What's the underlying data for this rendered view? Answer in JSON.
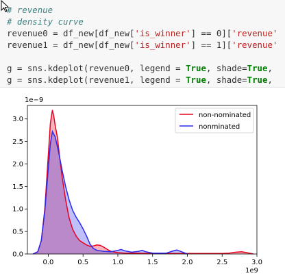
{
  "code": {
    "lines": [
      [
        {
          "t": "# revenue",
          "c": "cm"
        }
      ],
      [
        {
          "t": "# density curve",
          "c": "cm"
        }
      ],
      [
        {
          "t": "revenue0 = df_new[df_new[",
          "c": ""
        },
        {
          "t": "'is_winner'",
          "c": "st"
        },
        {
          "t": "] == 0][",
          "c": ""
        },
        {
          "t": "'revenue'",
          "c": "st"
        }
      ],
      [
        {
          "t": "revenue1 = df_new[df_new[",
          "c": ""
        },
        {
          "t": "'is_winner'",
          "c": "st"
        },
        {
          "t": "] == 1][",
          "c": ""
        },
        {
          "t": "'revenue'",
          "c": "st"
        }
      ],
      [],
      [
        {
          "t": "g = sns.kdeplot(revenue0, legend = ",
          "c": ""
        },
        {
          "t": "True",
          "c": "kw"
        },
        {
          "t": ", shade=",
          "c": ""
        },
        {
          "t": "True",
          "c": "kw"
        },
        {
          "t": ",",
          "c": ""
        }
      ],
      [
        {
          "t": "g = sns.kdeplot(revenue1, legend = ",
          "c": ""
        },
        {
          "t": "True",
          "c": "kw"
        },
        {
          "t": ", shade=",
          "c": ""
        },
        {
          "t": "True",
          "c": "kw"
        },
        {
          "t": ",",
          "c": ""
        }
      ]
    ]
  },
  "chart_data": {
    "type": "area",
    "x_tick_labels": [
      "0.0",
      "0.5",
      "1.0",
      "1.5",
      "2.0",
      "2.5",
      "3.0"
    ],
    "x_ticks": [
      0,
      0.5,
      1.0,
      1.5,
      2.0,
      2.5,
      3.0
    ],
    "y_tick_labels": [
      "0.0",
      "0.5",
      "1.0",
      "1.5",
      "2.0",
      "2.5",
      "3.0"
    ],
    "y_ticks": [
      0,
      0.5,
      1.0,
      1.5,
      2.0,
      2.5,
      3.0
    ],
    "x_offset_label": "1e9",
    "y_offset_label": "1e−9",
    "xlim": [
      -0.3,
      3.0
    ],
    "ylim": [
      0,
      3.3
    ],
    "legend_position": "top-right",
    "series": [
      {
        "name": "non-nominated",
        "color": "#e8001e",
        "fill": "#e8001e",
        "x": [
          -0.22,
          -0.15,
          -0.1,
          -0.05,
          0.0,
          0.03,
          0.06,
          0.08,
          0.1,
          0.13,
          0.16,
          0.2,
          0.25,
          0.3,
          0.35,
          0.4,
          0.45,
          0.5,
          0.55,
          0.6,
          0.65,
          0.7,
          0.75,
          0.8,
          0.85,
          0.9,
          1.0,
          1.1,
          1.2,
          1.3,
          1.4,
          1.5,
          1.6,
          1.7,
          1.8,
          1.9,
          2.0,
          2.2,
          2.5,
          2.6,
          2.7,
          2.78,
          2.85,
          2.95
        ],
        "y": [
          0.0,
          0.05,
          0.3,
          1.0,
          2.2,
          2.9,
          3.2,
          3.05,
          2.85,
          2.6,
          2.2,
          1.7,
          1.2,
          0.8,
          0.55,
          0.4,
          0.3,
          0.25,
          0.2,
          0.17,
          0.18,
          0.2,
          0.19,
          0.15,
          0.1,
          0.06,
          0.03,
          0.02,
          0.02,
          0.02,
          0.015,
          0.01,
          0.01,
          0.01,
          0.01,
          0.01,
          0.01,
          0.01,
          0.01,
          0.02,
          0.04,
          0.05,
          0.03,
          0.0
        ]
      },
      {
        "name": "nonminated",
        "color": "#2a2aee",
        "fill": "#2a2aee",
        "x": [
          -0.22,
          -0.15,
          -0.1,
          -0.05,
          0.0,
          0.03,
          0.06,
          0.1,
          0.15,
          0.2,
          0.25,
          0.3,
          0.35,
          0.4,
          0.45,
          0.5,
          0.55,
          0.6,
          0.65,
          0.7,
          0.8,
          0.9,
          1.0,
          1.05,
          1.1,
          1.2,
          1.3,
          1.35,
          1.4,
          1.5,
          1.6,
          1.7,
          1.8,
          1.85,
          1.9,
          2.0
        ],
        "y": [
          0.0,
          0.05,
          0.3,
          0.95,
          1.9,
          2.45,
          2.72,
          2.6,
          2.25,
          1.85,
          1.5,
          1.2,
          0.97,
          0.82,
          0.7,
          0.56,
          0.4,
          0.22,
          0.12,
          0.08,
          0.06,
          0.05,
          0.08,
          0.1,
          0.07,
          0.04,
          0.06,
          0.08,
          0.05,
          0.02,
          0.02,
          0.02,
          0.07,
          0.09,
          0.06,
          0.0
        ]
      }
    ]
  }
}
